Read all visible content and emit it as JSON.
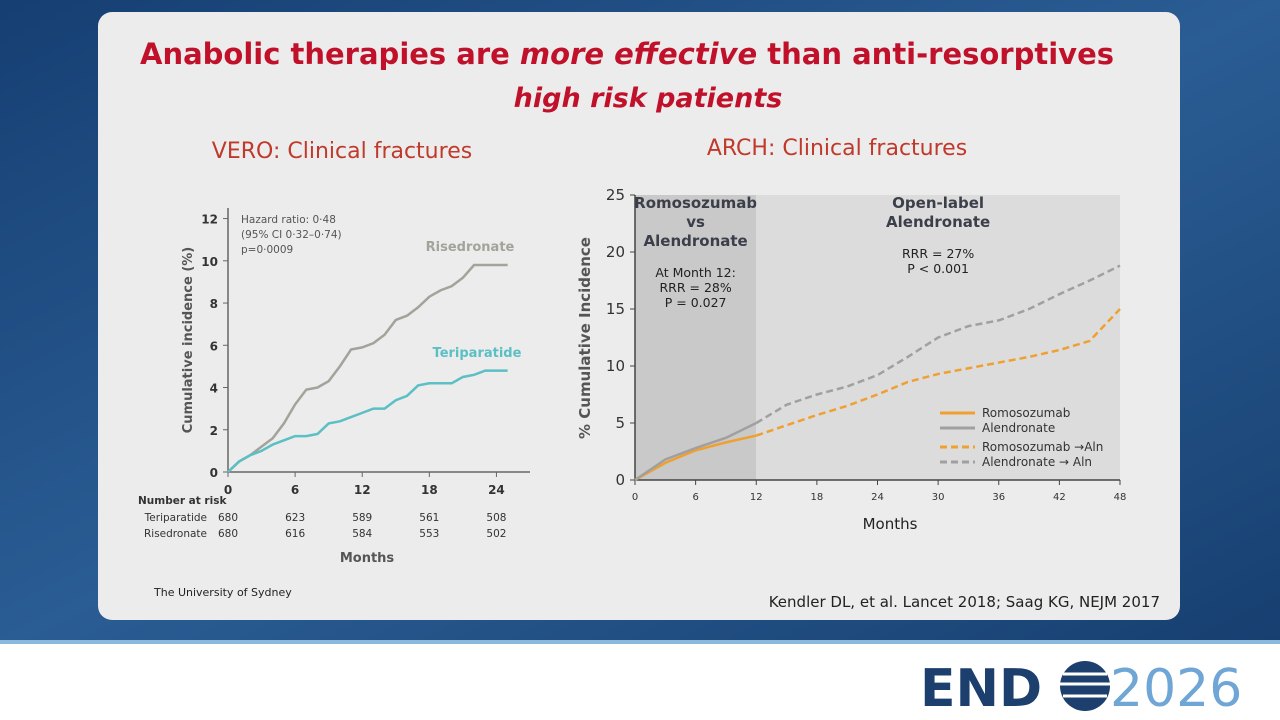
{
  "slide": {
    "title": [
      "Anabolic therapies are ",
      "more effective",
      " than anti-resorptives"
    ],
    "subtitle": "high risk patients",
    "source_left": "The University of Sydney",
    "source_right": "Kendler DL, et al. Lancet 2018; Saag KG, NEJM 2017",
    "logo": [
      "END",
      "2026"
    ]
  },
  "chart_data": [
    {
      "type": "line",
      "title": "VERO: Clinical fractures",
      "x": [
        0,
        1,
        2,
        3,
        4,
        5,
        6,
        7,
        8,
        9,
        10,
        11,
        12,
        13,
        14,
        15,
        16,
        17,
        18,
        19,
        20,
        21,
        22,
        23,
        24,
        25
      ],
      "xlim": [
        0,
        27
      ],
      "xticks": [
        0,
        6,
        12,
        18,
        24
      ],
      "ylim": [
        0,
        12.5
      ],
      "yticks": [
        0,
        2,
        4,
        6,
        8,
        10,
        12
      ],
      "ylabel": "Cumulative incidence (%)",
      "xlabel": "Months",
      "annotations": [
        "Hazard ratio: 0·48",
        "(95% CI 0·32–0·74)",
        "p=0·0009"
      ],
      "series": [
        {
          "name": "Risedronate",
          "color": "#a3a39b",
          "values": [
            0,
            0.5,
            0.8,
            1.2,
            1.6,
            2.3,
            3.2,
            3.9,
            4.0,
            4.3,
            5.0,
            5.8,
            5.9,
            6.1,
            6.5,
            7.2,
            7.4,
            7.8,
            8.3,
            8.6,
            8.8,
            9.2,
            9.8,
            9.8,
            9.8,
            9.8
          ]
        },
        {
          "name": "Teriparatide",
          "color": "#5bbfc3",
          "values": [
            0,
            0.5,
            0.8,
            1.0,
            1.3,
            1.5,
            1.7,
            1.7,
            1.8,
            2.3,
            2.4,
            2.6,
            2.8,
            3.0,
            3.0,
            3.4,
            3.6,
            4.1,
            4.2,
            4.2,
            4.2,
            4.5,
            4.6,
            4.8,
            4.8,
            4.8
          ]
        }
      ],
      "at_risk": {
        "title": "Number at risk",
        "rows": [
          {
            "name": "Teriparatide",
            "values": [
              680,
              623,
              589,
              561,
              508
            ]
          },
          {
            "name": "Risedronate",
            "values": [
              680,
              616,
              584,
              553,
              502
            ]
          }
        ]
      }
    },
    {
      "type": "line",
      "title": "ARCH: Clinical fractures",
      "x": [
        0,
        3,
        6,
        9,
        12,
        15,
        18,
        21,
        24,
        27,
        30,
        33,
        36,
        39,
        42,
        45,
        48
      ],
      "xlim": [
        0,
        48
      ],
      "xticks": [
        0,
        6,
        12,
        18,
        24,
        30,
        36,
        42,
        48
      ],
      "ylim": [
        0,
        25
      ],
      "yticks": [
        0,
        5,
        10,
        15,
        20,
        25
      ],
      "ylabel": "% Cumulative Incidence",
      "xlabel": "Months",
      "phases": [
        {
          "start": 0,
          "end": 12,
          "color": "#c9c9c9",
          "label": [
            "Romosozumab",
            "vs",
            "Alendronate"
          ],
          "notes": [
            "At Month 12:",
            "RRR = 28%",
            "P = 0.027"
          ]
        },
        {
          "start": 12,
          "end": 48,
          "color": "#dcdcdc",
          "label": [
            "Open-label",
            "Alendronate"
          ],
          "notes": [
            "RRR = 27%",
            "P < 0.001"
          ]
        }
      ],
      "series": [
        {
          "name": "Romosozumab",
          "color": "#f0a030",
          "dashed": false,
          "values": [
            0,
            1.5,
            2.6,
            3.3,
            3.9,
            null,
            null,
            null,
            null,
            null,
            null,
            null,
            null,
            null,
            null,
            null,
            null
          ]
        },
        {
          "name": "Alendronate",
          "color": "#a0a0a0",
          "dashed": false,
          "values": [
            0,
            1.8,
            2.8,
            3.7,
            5.0,
            null,
            null,
            null,
            null,
            null,
            null,
            null,
            null,
            null,
            null,
            null,
            null
          ]
        },
        {
          "name": "Romosozumab →Aln",
          "color": "#f0a030",
          "dashed": true,
          "values": [
            null,
            null,
            null,
            null,
            3.9,
            4.8,
            5.7,
            6.5,
            7.5,
            8.6,
            9.3,
            9.8,
            10.3,
            10.8,
            11.4,
            12.2,
            15.0
          ]
        },
        {
          "name": "Alendronate → Aln",
          "color": "#a0a0a0",
          "dashed": true,
          "values": [
            null,
            null,
            null,
            null,
            5.0,
            6.6,
            7.5,
            8.2,
            9.2,
            10.8,
            12.5,
            13.5,
            14.0,
            15.0,
            16.3,
            17.5,
            18.8
          ]
        }
      ],
      "legend": "lower right"
    }
  ]
}
